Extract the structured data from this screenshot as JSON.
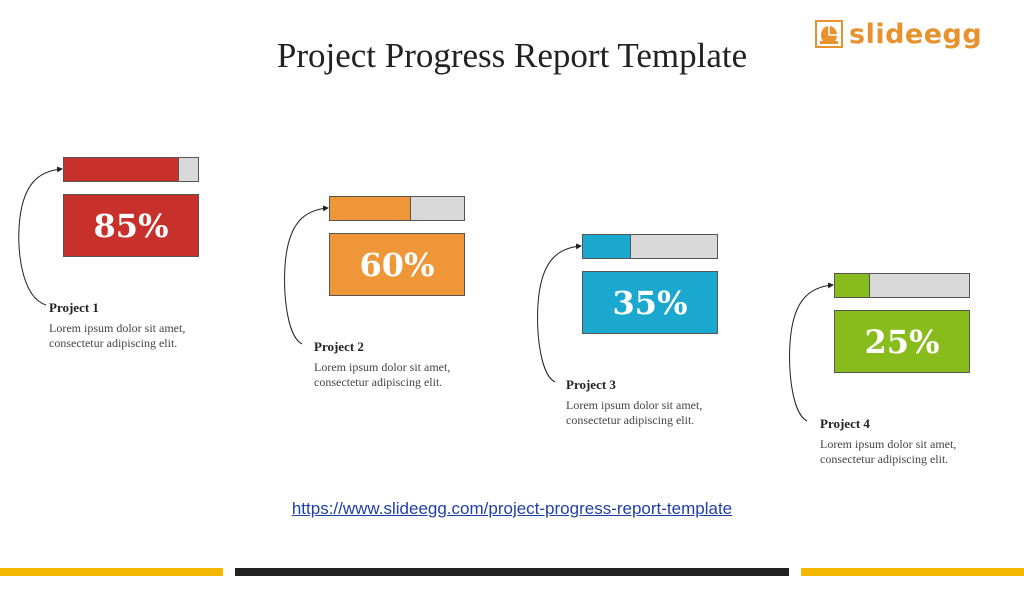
{
  "title": "Project Progress Report Template",
  "logo": {
    "text": "slideegg",
    "accent": "#e8922e"
  },
  "projects": [
    {
      "name": "Project 1",
      "percent": 85,
      "percent_label": "85%",
      "desc": "Lorem ipsum dolor sit amet, consectetur adipiscing elit.",
      "color": "#c8312b"
    },
    {
      "name": "Project 2",
      "percent": 60,
      "percent_label": "60%",
      "desc": "Lorem ipsum dolor sit amet, consectetur adipiscing elit.",
      "color": "#ef9738"
    },
    {
      "name": "Project 3",
      "percent": 35,
      "percent_label": "35%",
      "desc": "Lorem ipsum dolor sit amet, consectetur adipiscing elit.",
      "color": "#1ba8cf"
    },
    {
      "name": "Project 4",
      "percent": 25,
      "percent_label": "25%",
      "desc": "Lorem ipsum dolor sit amet, consectetur adipiscing elit.",
      "color": "#87bc1c"
    }
  ],
  "link": "https://www.slideegg.com/project-progress-report-template",
  "footer_colors": {
    "yellow": "#f5b800",
    "dark": "#222222"
  }
}
